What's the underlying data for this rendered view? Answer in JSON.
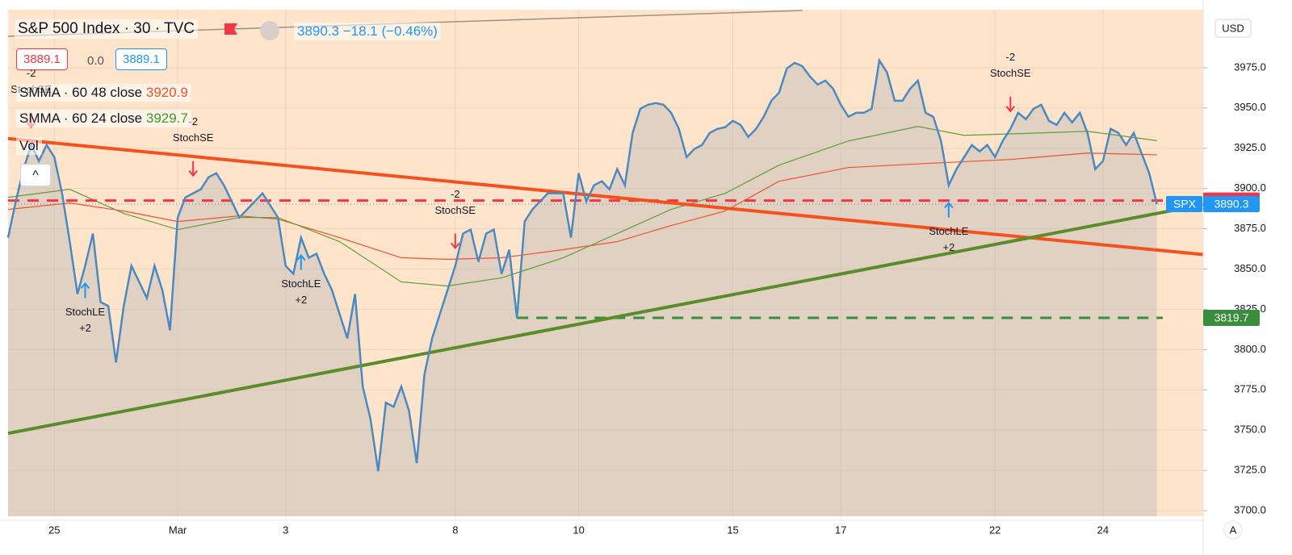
{
  "chart_data": {
    "type": "line",
    "title": "S&P 500 Index · 30 · TVC",
    "change": "−18.1",
    "change_pct": "(−0.46%)",
    "bid": "3889.1",
    "spread": "0.0",
    "ask": "3889.1",
    "volume_label": "Vol",
    "currency": "USD",
    "symbol": "SPX",
    "scale_mode": "A",
    "color": "#4a8ac0",
    "values": [
      3869.5,
      3892,
      3912,
      3927,
      3917,
      3927,
      3919.5,
      3897,
      3867,
      3834.5,
      3852,
      3872,
      3829.5,
      3827,
      3792,
      3827,
      3852,
      3842,
      3832,
      3852,
      3837,
      3812,
      3882,
      3894.5,
      3897,
      3899.5,
      3907,
      3909.5,
      3902,
      3892,
      3882,
      3887,
      3892,
      3897,
      3889.5,
      3882,
      3852,
      3847,
      3869.5,
      3857,
      3859.5,
      3847,
      3837,
      3822,
      3807,
      3834.5,
      3777,
      3757,
      3724.5,
      3767,
      3764.5,
      3777,
      3762,
      3729.5,
      3784.5,
      3807,
      3822,
      3837,
      3852,
      3872,
      3874.5,
      3854.5,
      3872,
      3874.5,
      3847,
      3862,
      3819.5,
      3879.5,
      3887,
      3892,
      3897,
      3897,
      3897,
      3869.5,
      3909.5,
      3892,
      3902,
      3904.5,
      3899.5,
      3912,
      3902,
      3934.5,
      3949.5,
      3952,
      3953,
      3952,
      3947,
      3937,
      3919.5,
      3924.5,
      3927,
      3934.5,
      3937,
      3938,
      3942,
      3939.5,
      3932,
      3937,
      3944.5,
      3954.5,
      3959.5,
      3974.5,
      3978,
      3976,
      3969.5,
      3964.5,
      3967,
      3962,
      3952,
      3944.5,
      3947,
      3947,
      3949.5,
      3979.5,
      3972,
      3954.5,
      3954.5,
      3962,
      3967,
      3947,
      3944.5,
      3929.5,
      3902,
      3912,
      3919.5,
      3927,
      3923,
      3927,
      3919.5,
      3929.5,
      3937,
      3947,
      3943,
      3949.5,
      3952,
      3942,
      3939.5,
      3947,
      3941,
      3947,
      3934.5,
      3912,
      3917,
      3937,
      3934.5,
      3927,
      3934.5,
      3922,
      3909.5,
      3890.3
    ],
    "indicators": [
      {
        "name": "SMMA · 60 48 close",
        "color": "#f0522d",
        "x": [
          0,
          8,
          15,
          22,
          30,
          35,
          43,
          51,
          57,
          64,
          72,
          79,
          86,
          93,
          100,
          109,
          119,
          130,
          140,
          149
        ],
        "values": [
          3887,
          3891,
          3886,
          3879.5,
          3883,
          3881,
          3869.5,
          3857,
          3856,
          3857,
          3862,
          3867,
          3877,
          3886,
          3904.5,
          3913,
          3915.5,
          3918,
          3922,
          3920.9
        ]
      },
      {
        "name": "SMMA · 60 24 close",
        "color": "#5f9e3a",
        "x": [
          0,
          8,
          15,
          22,
          30,
          35,
          43,
          51,
          57,
          64,
          72,
          79,
          86,
          93,
          100,
          109,
          118,
          124,
          134,
          140,
          149
        ],
        "values": [
          3894.5,
          3899.5,
          3884.5,
          3874.5,
          3882,
          3882,
          3867,
          3842,
          3839.5,
          3844.5,
          3857,
          3872,
          3887,
          3897,
          3914.5,
          3929.5,
          3938.5,
          3933,
          3934.5,
          3935.5,
          3929.7
        ]
      }
    ],
    "trendlines": [
      {
        "color": "#f4511e",
        "x": [
          0,
          155
        ],
        "values": [
          3931,
          3859
        ]
      },
      {
        "color": "#5b8c2a",
        "x": [
          0,
          155
        ],
        "values": [
          3748,
          3890
        ]
      },
      {
        "color": "#a09080",
        "x": [
          0,
          103
        ],
        "values": [
          3994.5,
          4010.5
        ]
      }
    ],
    "levels": [
      {
        "value": 3892.5,
        "color": "#f23645",
        "from": 0,
        "style": "dashed"
      },
      {
        "value": 3819.7,
        "color": "#388e3c",
        "from": 66,
        "style": "dashed"
      }
    ],
    "signals": [
      {
        "label": "StochSE",
        "qty": "-2",
        "x": 3,
        "side": "short"
      },
      {
        "label": "StochSE",
        "qty": "-2",
        "x": 24,
        "side": "short"
      },
      {
        "label": "StochSE",
        "qty": "-2",
        "x": 58,
        "side": "short"
      },
      {
        "label": "StochSE",
        "qty": "-2",
        "x": 130,
        "side": "short"
      },
      {
        "label": "StochLE",
        "qty": "+2",
        "x": 10,
        "side": "long"
      },
      {
        "label": "StochLE",
        "qty": "+2",
        "x": 38,
        "side": "long"
      },
      {
        "label": "StochLE",
        "qty": "+2",
        "x": 122,
        "side": "long"
      }
    ],
    "xlim": [
      0,
      155
    ],
    "xticks": [
      {
        "value": 6,
        "label": "25"
      },
      {
        "value": 22,
        "label": "Mar"
      },
      {
        "value": 36,
        "label": "3"
      },
      {
        "value": 58,
        "label": "8"
      },
      {
        "value": 74,
        "label": "10"
      },
      {
        "value": 94,
        "label": "15"
      },
      {
        "value": 108,
        "label": "17"
      },
      {
        "value": 128,
        "label": "22"
      },
      {
        "value": 142,
        "label": "24"
      }
    ],
    "ylim": [
      3694,
      4011
    ],
    "yticks": [
      {
        "value": 3700,
        "label": "3700.0"
      },
      {
        "value": 3725,
        "label": "3725.0"
      },
      {
        "value": 3750,
        "label": "3750.0"
      },
      {
        "value": 3775,
        "label": "3775.0"
      },
      {
        "value": 3800,
        "label": "3800.0"
      },
      {
        "value": 3825,
        "label": "3825.0"
      },
      {
        "value": 3850,
        "label": "3850.0"
      },
      {
        "value": 3875,
        "label": "3875.0"
      },
      {
        "value": 3900,
        "label": "3900.0"
      },
      {
        "value": 3925,
        "label": "3925.0"
      },
      {
        "value": 3950,
        "label": "3950.0"
      },
      {
        "value": 3975,
        "label": "3975.0"
      }
    ],
    "grid": true
  }
}
